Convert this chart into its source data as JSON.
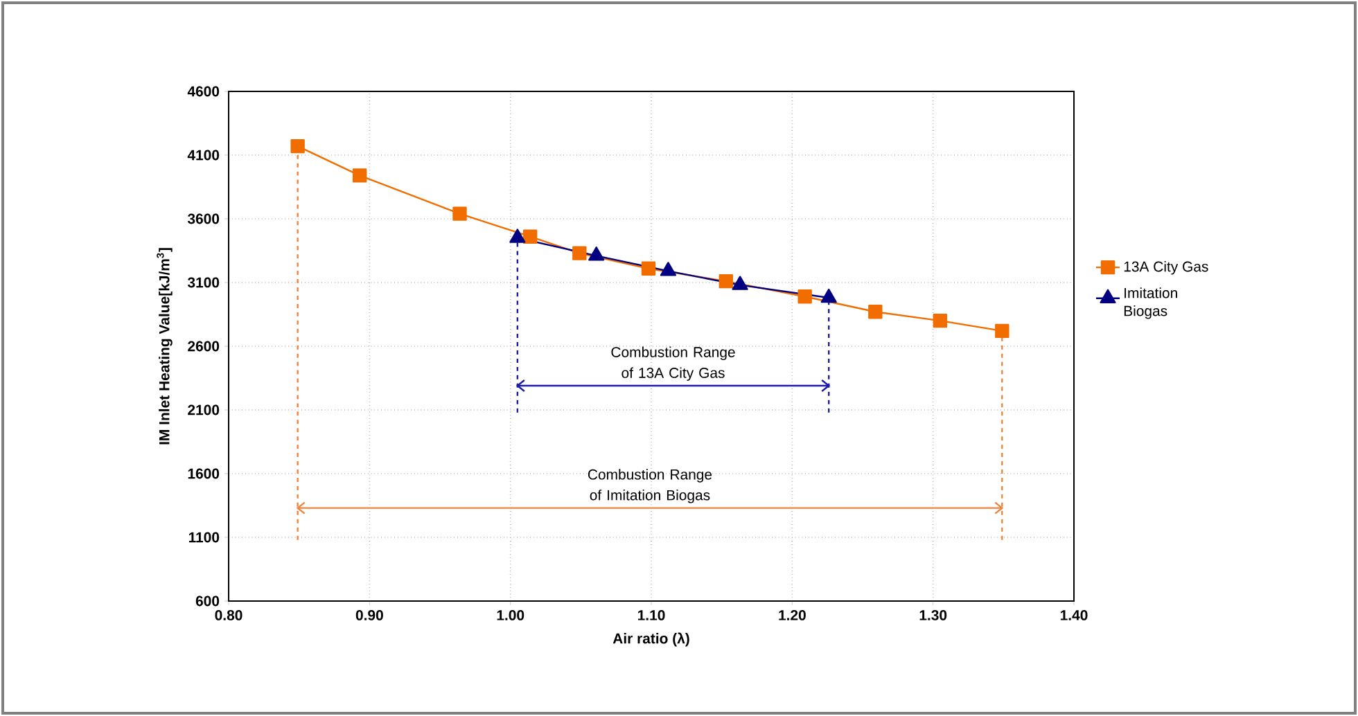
{
  "chart_data": {
    "type": "line",
    "xlabel": "Air ratio (λ)",
    "ylabel": "IM Inlet Heating Value[kJ/m$^{3}$]",
    "xlim": [
      0.8,
      1.4
    ],
    "ylim": [
      600,
      4600
    ],
    "xticks": [
      {
        "value": 0.8,
        "label": "0.80"
      },
      {
        "value": 0.9,
        "label": "0.90"
      },
      {
        "value": 1.0,
        "label": "1.00"
      },
      {
        "value": 1.1,
        "label": "1.10"
      },
      {
        "value": 1.2,
        "label": "1.20"
      },
      {
        "value": 1.3,
        "label": "1.30"
      },
      {
        "value": 1.4,
        "label": "1.40"
      }
    ],
    "yticks": [
      600,
      1100,
      1600,
      2100,
      2600,
      3100,
      3600,
      4100,
      4600
    ],
    "grid": true,
    "legend": "right",
    "series": [
      {
        "name": "13A City Gas",
        "color": "#f26d00",
        "marker": "square",
        "x": [
          0.849,
          0.893,
          0.964,
          1.014,
          1.049,
          1.098,
          1.153,
          1.209,
          1.259,
          1.305,
          1.349
        ],
        "values": [
          4170,
          3940,
          3640,
          3460,
          3330,
          3210,
          3110,
          2990,
          2870,
          2800,
          2720
        ]
      },
      {
        "name": "Imitation Biogas",
        "color": "#000080",
        "marker": "triangle",
        "x": [
          1.005,
          1.061,
          1.112,
          1.163,
          1.226
        ],
        "values": [
          3450,
          3310,
          3190,
          3080,
          2980
        ]
      },
      {
        "color": "#1c1ca8",
        "marker": "none",
        "x": [
          1.005,
          1.226
        ],
        "values": [
          2290,
          2290
        ]
      },
      {
        "color": "#f0843c",
        "marker": "none",
        "x": [
          0.849,
          1.349
        ],
        "values": [
          1330,
          1330
        ]
      }
    ],
    "ref_lines": [
      {
        "axis": "x",
        "value": 1.005,
        "color": "#1c1ca8",
        "line_style": "dashed"
      },
      {
        "axis": "x",
        "value": 1.226,
        "color": "#1c1ca8",
        "line_style": "dashed"
      },
      {
        "axis": "x",
        "value": 0.849,
        "color": "#f0843c",
        "line_style": "dashed"
      },
      {
        "axis": "x",
        "value": 1.349,
        "color": "#f0843c",
        "line_style": "dashed"
      }
    ],
    "annotations": [
      "Combustion Range of 13A City Gas",
      "Combustion Range of Imitation Biogas"
    ]
  }
}
